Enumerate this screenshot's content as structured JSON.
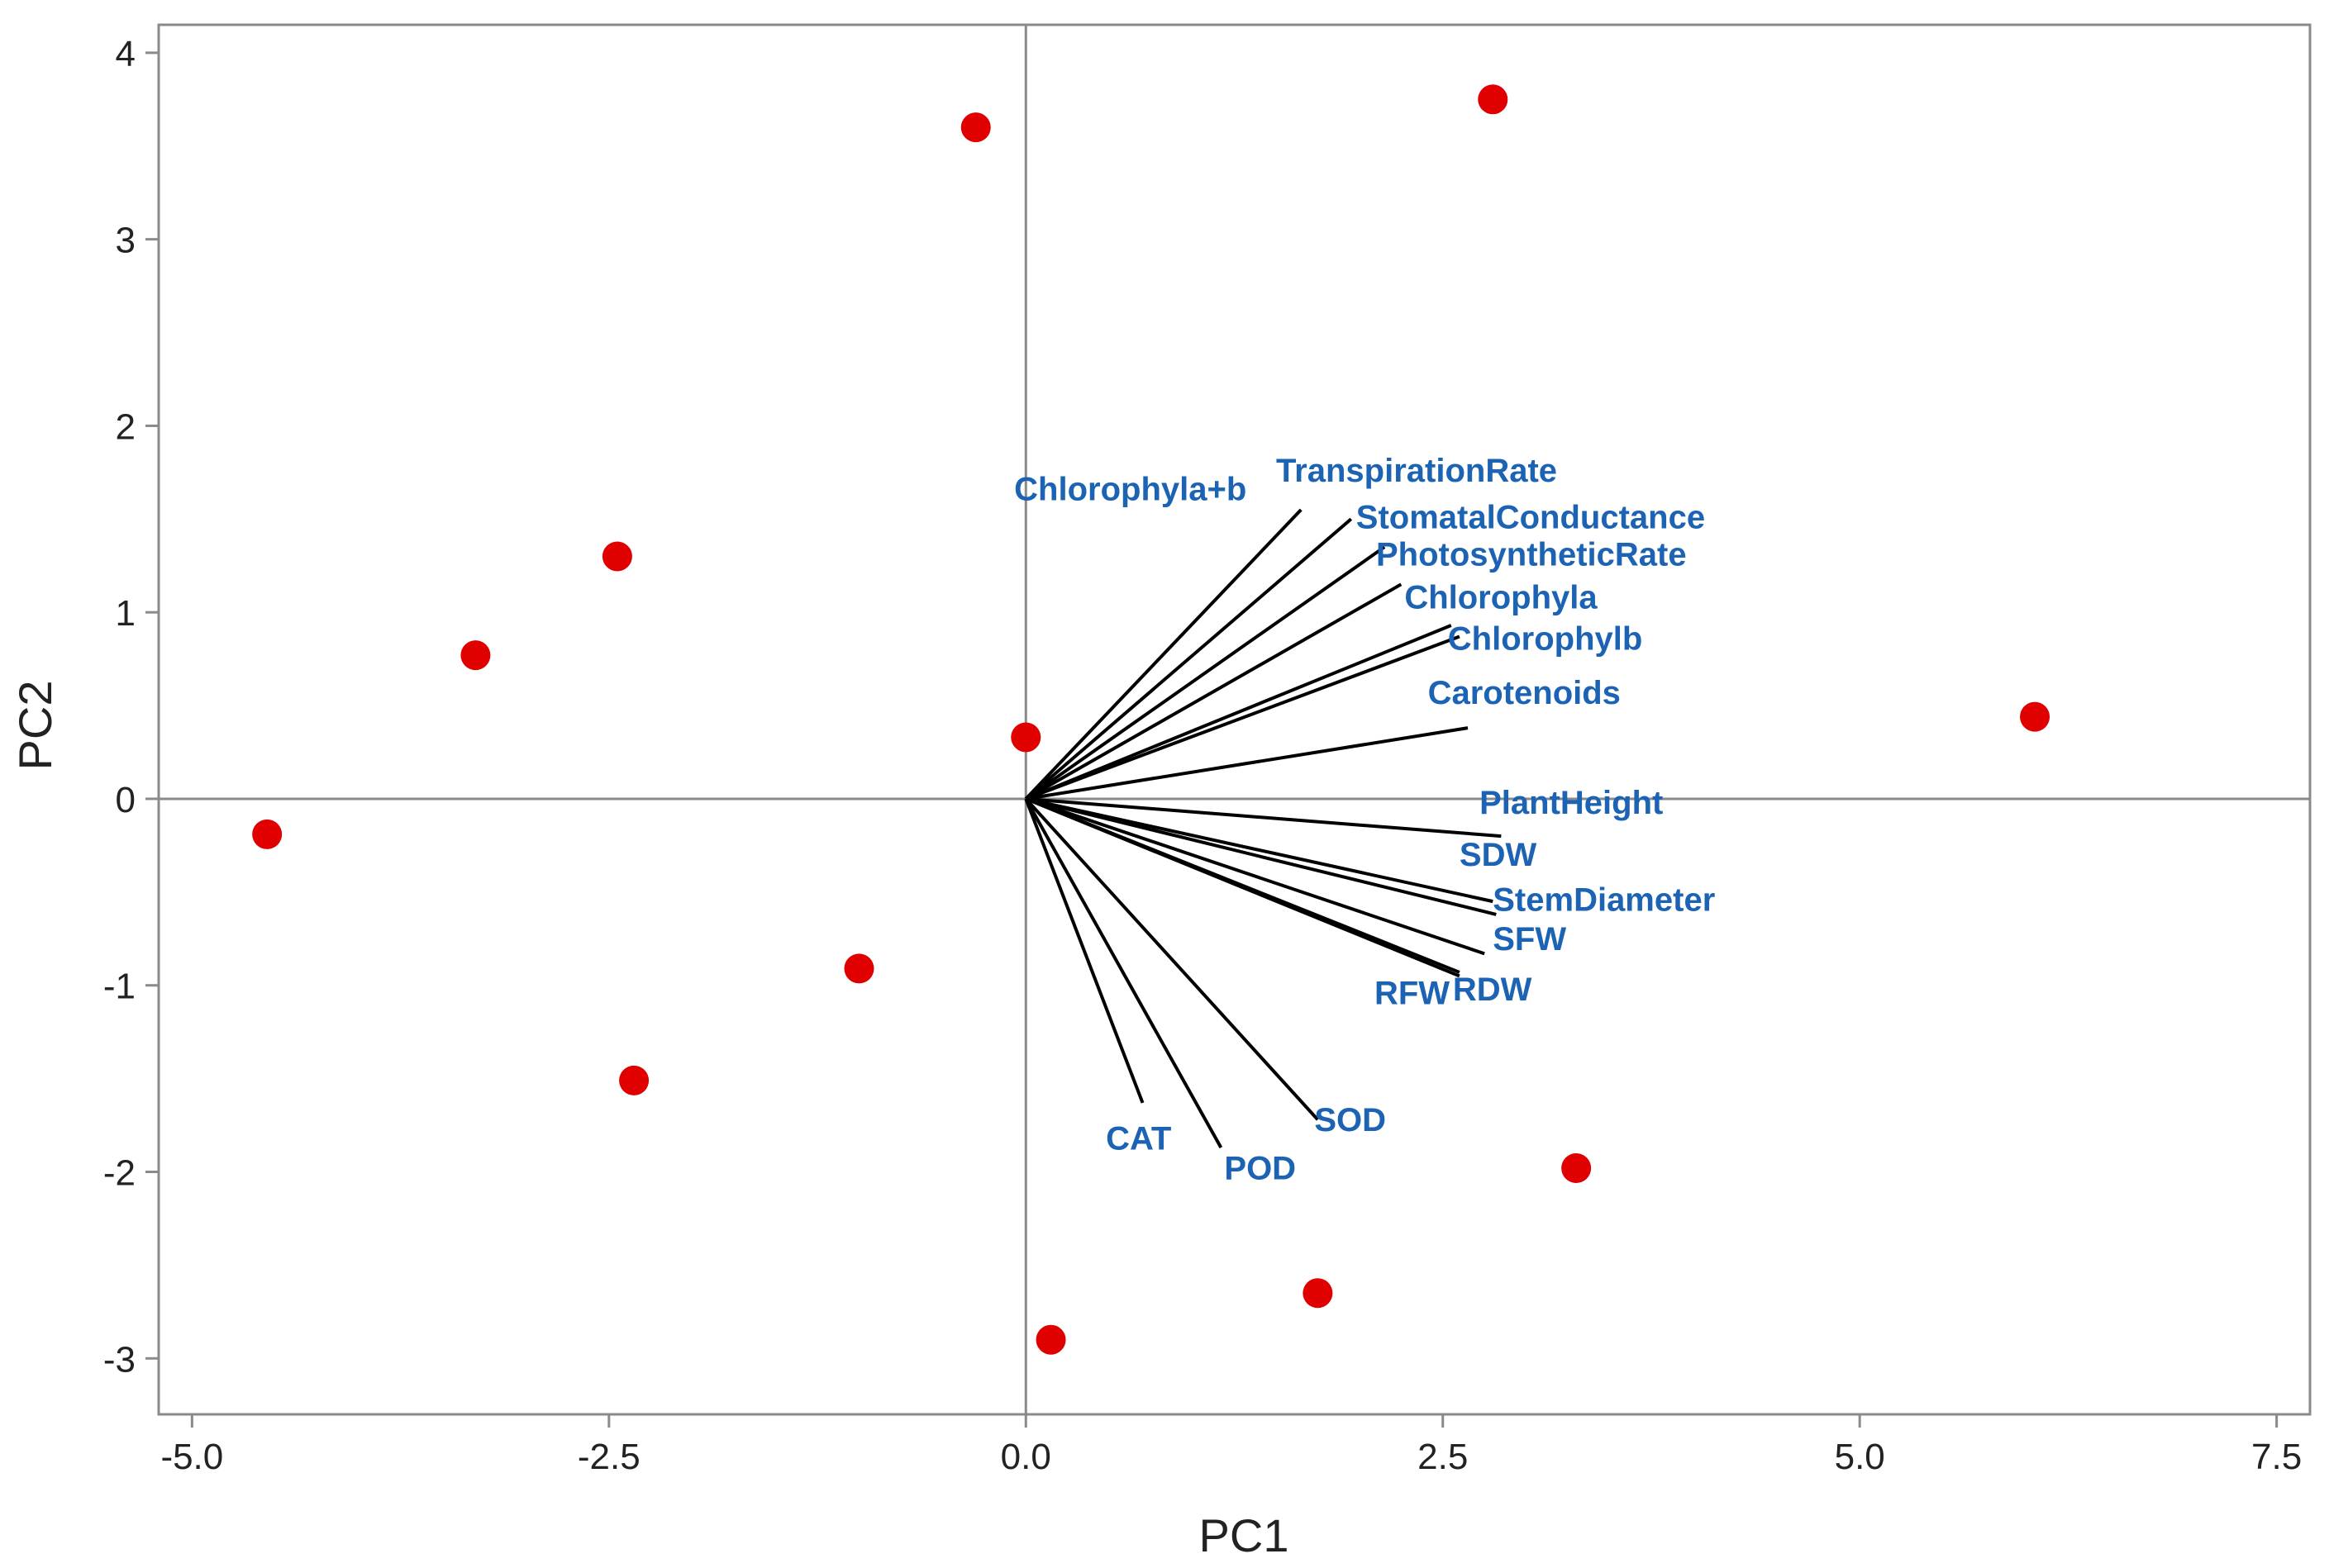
{
  "chart_data": {
    "type": "scatter",
    "subtype": "pca-biplot",
    "title": "",
    "xlabel": "PC1",
    "ylabel": "PC2",
    "xlim": [
      -5.2,
      7.7
    ],
    "ylim": [
      -3.3,
      4.15
    ],
    "xticks": [
      -5.0,
      -2.5,
      0.0,
      2.5,
      5.0,
      7.5
    ],
    "xtick_labels": [
      "-5.0",
      "-2.5",
      "0.0",
      "2.5",
      "5.0",
      "7.5"
    ],
    "yticks": [
      -3,
      -2,
      -1,
      0,
      1,
      2,
      3,
      4
    ],
    "ytick_labels": [
      "-3",
      "-2",
      "-1",
      "0",
      "1",
      "2",
      "3",
      "4"
    ],
    "grid": false,
    "reference_lines": {
      "x": 0,
      "y": 0
    },
    "colors": {
      "points": "#e00000",
      "vectors": "#000000",
      "vector_labels": "#1c63b4",
      "frame": "#8a8a8a",
      "reference": "#8a8a8a"
    },
    "scores": [
      {
        "x": 2.8,
        "y": 3.75
      },
      {
        "x": -0.3,
        "y": 3.6
      },
      {
        "x": -2.45,
        "y": 1.3
      },
      {
        "x": -3.3,
        "y": 0.77
      },
      {
        "x": 0.0,
        "y": 0.33
      },
      {
        "x": 6.05,
        "y": 0.44
      },
      {
        "x": -4.55,
        "y": -0.19
      },
      {
        "x": -1.0,
        "y": -0.91
      },
      {
        "x": -2.35,
        "y": -1.51
      },
      {
        "x": 3.3,
        "y": -1.98
      },
      {
        "x": 1.75,
        "y": -2.65
      },
      {
        "x": 0.15,
        "y": -2.9
      }
    ],
    "loadings": [
      {
        "label": "Chlorophyla+b",
        "x": 1.65,
        "y": 1.55,
        "lx": -0.07,
        "ly": 1.6
      },
      {
        "label": "TranspirationRate",
        "x": 1.95,
        "y": 1.5,
        "lx": 1.5,
        "ly": 1.7
      },
      {
        "label": "StomatalConductance",
        "x": 2.15,
        "y": 1.35,
        "lx": 1.98,
        "ly": 1.45
      },
      {
        "label": "PhotosyntheticRate",
        "x": 2.25,
        "y": 1.15,
        "lx": 2.1,
        "ly": 1.25
      },
      {
        "label": "Chlorophyla",
        "x": 2.55,
        "y": 0.93,
        "lx": 2.27,
        "ly": 1.02
      },
      {
        "label": "Chlorophylb",
        "x": 2.6,
        "y": 0.87,
        "lx": 2.53,
        "ly": 0.8
      },
      {
        "label": "Carotenoids",
        "x": 2.65,
        "y": 0.38,
        "lx": 2.41,
        "ly": 0.51
      },
      {
        "label": "PlantHeight",
        "x": 2.85,
        "y": -0.2,
        "lx": 2.72,
        "ly": -0.08
      },
      {
        "label": "SDW",
        "x": 2.8,
        "y": -0.55,
        "lx": 2.6,
        "ly": -0.36
      },
      {
        "label": "StemDiameter",
        "x": 2.82,
        "y": -0.62,
        "lx": 2.8,
        "ly": -0.6
      },
      {
        "label": "SFW",
        "x": 2.75,
        "y": -0.83,
        "lx": 2.8,
        "ly": -0.81
      },
      {
        "label": "RDW",
        "x": 2.6,
        "y": -0.95,
        "lx": 2.56,
        "ly": -1.08
      },
      {
        "label": "RFW",
        "x": 2.6,
        "y": -0.93,
        "lx": 2.09,
        "ly": -1.1
      },
      {
        "label": "SOD",
        "x": 1.75,
        "y": -1.72,
        "lx": 1.73,
        "ly": -1.78
      },
      {
        "label": "POD",
        "x": 1.17,
        "y": -1.87,
        "lx": 1.19,
        "ly": -2.04
      },
      {
        "label": "CAT",
        "x": 0.7,
        "y": -1.63,
        "lx": 0.48,
        "ly": -1.88
      }
    ]
  }
}
